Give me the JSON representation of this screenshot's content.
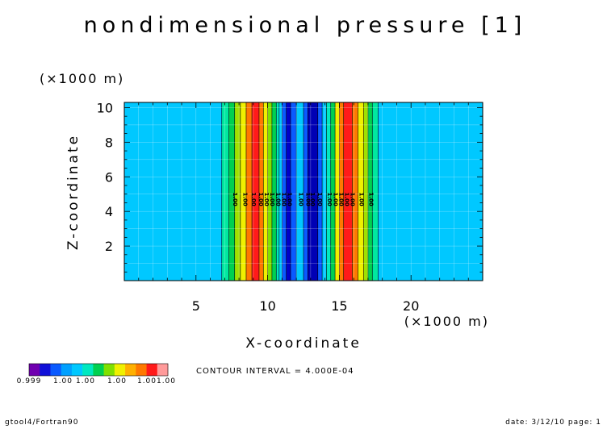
{
  "chart_data": {
    "type": "heatmap",
    "title": "nondimensional pressure [1]",
    "xlabel": "X-coordinate",
    "ylabel": "Z-coordinate",
    "x_unit": "(×1000 m)",
    "y_unit": "(×1000 m)",
    "xlim": [
      0,
      25
    ],
    "ylim": [
      0,
      10.3
    ],
    "x_ticks": [
      5,
      10,
      15,
      20
    ],
    "y_ticks": [
      2,
      4,
      6,
      8,
      10
    ],
    "grid": true,
    "contour_interval_text": "CONTOUR INTERVAL = 4.000E-04",
    "color_bands": [
      {
        "x0": 0.0,
        "x1": 6.8,
        "color": "#00c8ff"
      },
      {
        "x0": 6.8,
        "x1": 7.3,
        "color": "#00e8a0"
      },
      {
        "x0": 7.3,
        "x1": 7.7,
        "color": "#00d050"
      },
      {
        "x0": 7.7,
        "x1": 8.1,
        "color": "#a0e000"
      },
      {
        "x0": 8.1,
        "x1": 8.5,
        "color": "#f0f000"
      },
      {
        "x0": 8.5,
        "x1": 8.9,
        "color": "#ff7800"
      },
      {
        "x0": 8.9,
        "x1": 9.4,
        "color": "#ff1a1a"
      },
      {
        "x0": 9.4,
        "x1": 9.7,
        "color": "#ff7800"
      },
      {
        "x0": 9.7,
        "x1": 10.0,
        "color": "#f0f000"
      },
      {
        "x0": 10.0,
        "x1": 10.3,
        "color": "#80e000"
      },
      {
        "x0": 10.3,
        "x1": 10.6,
        "color": "#00d050"
      },
      {
        "x0": 10.6,
        "x1": 10.8,
        "color": "#00e8c0"
      },
      {
        "x0": 10.8,
        "x1": 11.0,
        "color": "#00c8ff"
      },
      {
        "x0": 11.0,
        "x1": 11.3,
        "color": "#0a5aff"
      },
      {
        "x0": 11.3,
        "x1": 11.6,
        "color": "#0000c8"
      },
      {
        "x0": 11.6,
        "x1": 12.0,
        "color": "#0a5aff"
      },
      {
        "x0": 12.0,
        "x1": 12.5,
        "color": "#00c8ff"
      },
      {
        "x0": 12.5,
        "x1": 12.8,
        "color": "#0a5aff"
      },
      {
        "x0": 12.8,
        "x1": 13.5,
        "color": "#0000b4"
      },
      {
        "x0": 13.5,
        "x1": 13.8,
        "color": "#0a5aff"
      },
      {
        "x0": 13.8,
        "x1": 14.1,
        "color": "#00c8ff"
      },
      {
        "x0": 14.1,
        "x1": 14.4,
        "color": "#00e8c0"
      },
      {
        "x0": 14.4,
        "x1": 14.7,
        "color": "#00d050"
      },
      {
        "x0": 14.7,
        "x1": 15.0,
        "color": "#f0f000"
      },
      {
        "x0": 15.0,
        "x1": 15.3,
        "color": "#ff7800"
      },
      {
        "x0": 15.3,
        "x1": 15.9,
        "color": "#ff1a1a"
      },
      {
        "x0": 15.9,
        "x1": 16.3,
        "color": "#ff7800"
      },
      {
        "x0": 16.3,
        "x1": 16.7,
        "color": "#f0f000"
      },
      {
        "x0": 16.7,
        "x1": 17.0,
        "color": "#a0e000"
      },
      {
        "x0": 17.0,
        "x1": 17.3,
        "color": "#00d050"
      },
      {
        "x0": 17.3,
        "x1": 17.7,
        "color": "#00e8a0"
      },
      {
        "x0": 17.7,
        "x1": 25.0,
        "color": "#00c8ff"
      }
    ],
    "contour_labels": [
      {
        "x": 7.6,
        "text": "1.00"
      },
      {
        "x": 8.3,
        "text": "1.00"
      },
      {
        "x": 8.9,
        "text": "1.00"
      },
      {
        "x": 9.4,
        "text": "1.00"
      },
      {
        "x": 9.8,
        "text": "1.00"
      },
      {
        "x": 10.2,
        "text": "1.00"
      },
      {
        "x": 10.6,
        "text": "1.00"
      },
      {
        "x": 11.0,
        "text": "1.00"
      },
      {
        "x": 11.4,
        "text": "1.00"
      },
      {
        "x": 12.2,
        "text": "1.00"
      },
      {
        "x": 12.7,
        "text": "1.00"
      },
      {
        "x": 13.0,
        "text": "1.00"
      },
      {
        "x": 13.5,
        "text": "1.00"
      },
      {
        "x": 14.2,
        "text": "1.00"
      },
      {
        "x": 14.6,
        "text": "1.00"
      },
      {
        "x": 15.0,
        "text": "1.00"
      },
      {
        "x": 15.4,
        "text": "1.00"
      },
      {
        "x": 15.8,
        "text": "1.00"
      },
      {
        "x": 16.4,
        "text": "1.00"
      },
      {
        "x": 17.1,
        "text": "1.00"
      }
    ],
    "contour_label_y": 4.7,
    "colorbar": {
      "colors": [
        "#7000b0",
        "#1010d8",
        "#0a5aff",
        "#00a0ff",
        "#00c8ff",
        "#00e8c0",
        "#00d050",
        "#80e000",
        "#f0f000",
        "#ffb000",
        "#ff7800",
        "#ff1a1a",
        "#ff9a9a"
      ],
      "labels": [
        "0.999",
        "1.00",
        "1.00",
        "1.00",
        "1.00",
        "1.00"
      ]
    }
  },
  "footer": {
    "left": "gtool4/Fortran90",
    "right": "date: 3/12/10 page: 1"
  }
}
